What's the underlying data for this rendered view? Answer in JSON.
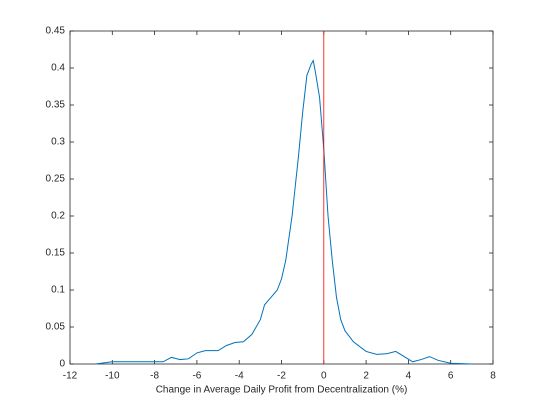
{
  "chart_data": {
    "type": "line",
    "xlabel": "Change in Average Daily Profit from Decentralization (%)",
    "x": [
      -10.8,
      -10,
      -9,
      -8,
      -7.6,
      -7.2,
      -6.8,
      -6.4,
      -6,
      -5.6,
      -5,
      -4.6,
      -4.2,
      -3.8,
      -3.4,
      -3,
      -2.8,
      -2.5,
      -2.2,
      -2,
      -1.8,
      -1.5,
      -1.2,
      -1,
      -0.8,
      -0.6,
      -0.5,
      -0.4,
      -0.2,
      0,
      0.2,
      0.4,
      0.6,
      0.8,
      1,
      1.4,
      2,
      2.5,
      3,
      3.4,
      3.8,
      4.2,
      4.6,
      5,
      5.4,
      6,
      7
    ],
    "series": [
      {
        "color": "#0072bd",
        "values": [
          0,
          0.003,
          0.003,
          0.003,
          0.003,
          0.009,
          0.006,
          0.007,
          0.015,
          0.018,
          0.018,
          0.025,
          0.029,
          0.03,
          0.04,
          0.06,
          0.08,
          0.09,
          0.1,
          0.115,
          0.14,
          0.2,
          0.28,
          0.34,
          0.39,
          0.405,
          0.41,
          0.395,
          0.36,
          0.29,
          0.2,
          0.14,
          0.09,
          0.06,
          0.045,
          0.03,
          0.017,
          0.013,
          0.014,
          0.017,
          0.01,
          0.003,
          0.006,
          0.01,
          0.005,
          0.001,
          0
        ]
      }
    ],
    "vline": {
      "x": 0,
      "color": "#ff0000"
    },
    "xlim": [
      -12,
      8
    ],
    "xticks": [
      -12,
      -10,
      -8,
      -6,
      -4,
      -2,
      0,
      2,
      4,
      6,
      8
    ],
    "ylim": [
      0,
      0.45
    ],
    "yticks": [
      0,
      0.05,
      0.1,
      0.15,
      0.2,
      0.25,
      0.3,
      0.35,
      0.4,
      0.45
    ]
  }
}
